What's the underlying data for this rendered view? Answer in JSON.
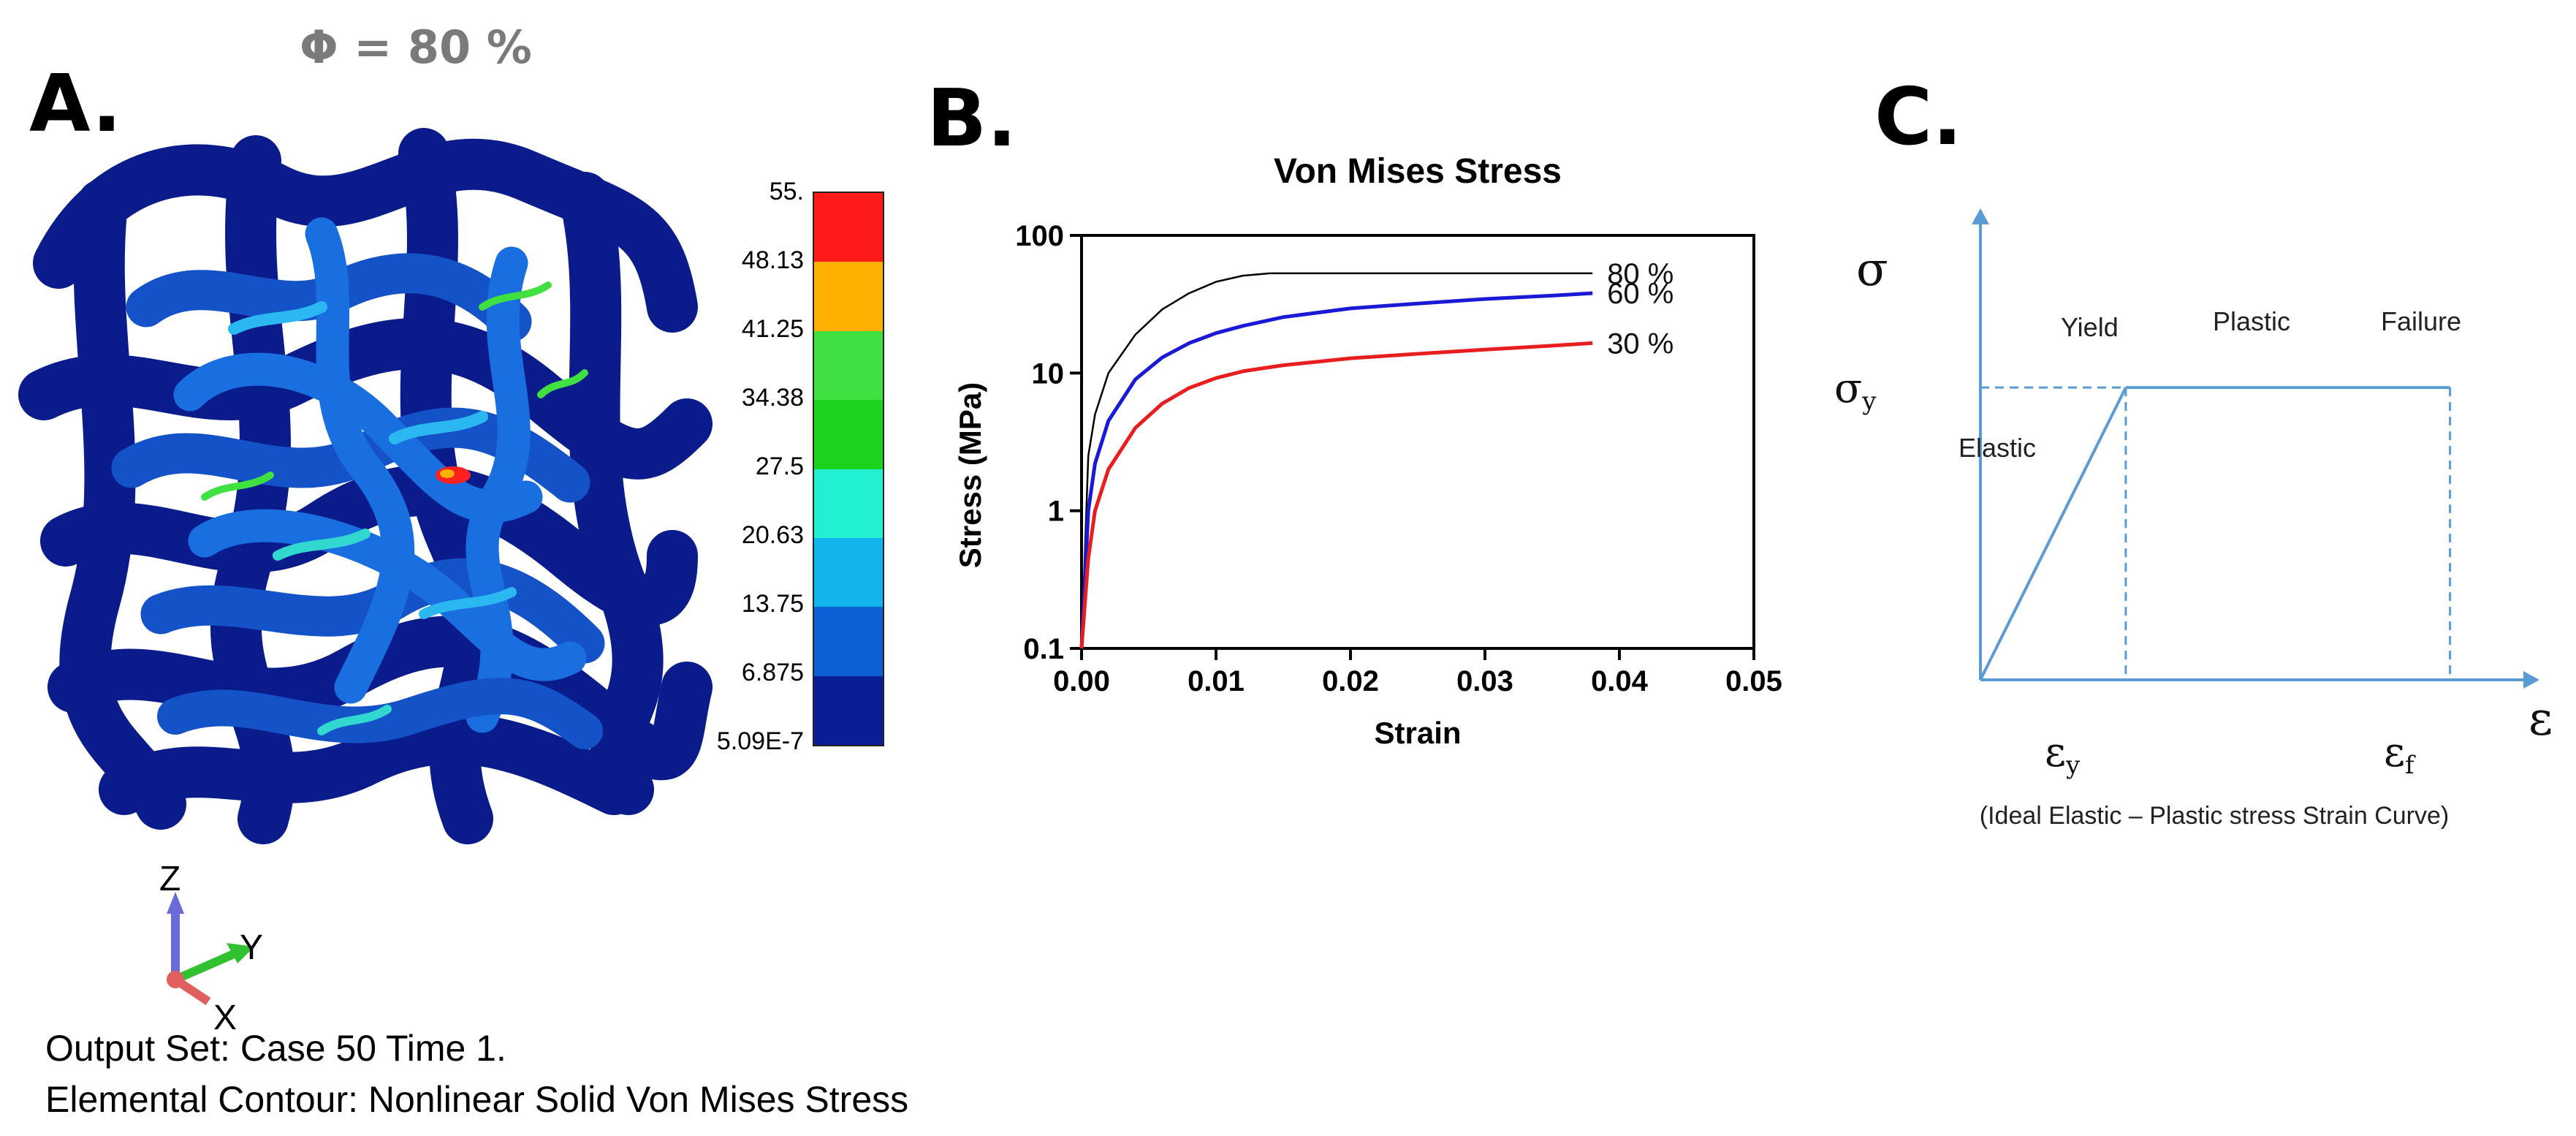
{
  "panel_a": {
    "label": "A.",
    "phi_title": "Φ = 80 %",
    "legend": {
      "values": [
        "55.",
        "48.13",
        "41.25",
        "34.38",
        "27.5",
        "20.63",
        "13.75",
        "6.875",
        "5.09E-7"
      ],
      "colors": [
        "#ff1a1a",
        "#ffb000",
        "#40e040",
        "#1cd21c",
        "#22f0d2",
        "#12b4ee",
        "#0d5fd6",
        "#0a1c96"
      ]
    },
    "axes_triad": {
      "z": "Z",
      "y": "Y",
      "x": "X"
    },
    "caption": {
      "line1": "Output Set: Case 50 Time 1.",
      "line2": "Elemental Contour: Nonlinear Solid Von Mises Stress"
    }
  },
  "panel_b": {
    "label": "B."
  },
  "panel_c": {
    "label": "C.",
    "y_axis_symbol": "σ",
    "x_axis_symbol": "ε",
    "sigma_y": {
      "main": "σ",
      "sub": "y"
    },
    "eps_y": {
      "main": "ε",
      "sub": "y"
    },
    "eps_f": {
      "main": "ε",
      "sub": "f"
    },
    "labels": {
      "elastic": "Elastic",
      "yield": "Yield",
      "plastic": "Plastic",
      "failure": "Failure"
    },
    "caption": "(Ideal Elastic – Plastic stress Strain Curve)",
    "line_color": "#5b9bd5",
    "model": {
      "yield_strain_frac": 0.26,
      "failure_strain_frac": 0.84,
      "yield_stress_frac": 0.62
    }
  },
  "chart_data": {
    "type": "line",
    "title": "Von Mises Stress",
    "xlabel": "Strain",
    "ylabel": "Stress (MPa)",
    "xlim": [
      0,
      0.05
    ],
    "ylim": [
      0.1,
      100
    ],
    "yscale": "log",
    "xticks": [
      "0.00",
      "0.01",
      "0.02",
      "0.03",
      "0.04",
      "0.05"
    ],
    "yticks": [
      "0.1",
      "1",
      "10",
      "100"
    ],
    "series": [
      {
        "name": "80 %",
        "label": "80 %",
        "color": "#000000",
        "x": [
          0,
          0.0005,
          0.001,
          0.002,
          0.004,
          0.006,
          0.008,
          0.01,
          0.012,
          0.014,
          0.016,
          0.02,
          0.025,
          0.03,
          0.035,
          0.038
        ],
        "y": [
          0.1,
          2.5,
          5,
          10,
          19,
          29,
          38,
          46,
          51,
          53,
          53,
          53,
          53,
          53,
          53,
          53
        ]
      },
      {
        "name": "60 %",
        "label": "60 %",
        "color": "#1a1ad6",
        "x": [
          0,
          0.0005,
          0.001,
          0.002,
          0.004,
          0.006,
          0.008,
          0.01,
          0.012,
          0.015,
          0.02,
          0.025,
          0.03,
          0.035,
          0.038
        ],
        "y": [
          0.1,
          1.0,
          2.2,
          4.5,
          9,
          13,
          16.5,
          19.5,
          22,
          25.5,
          29.5,
          32,
          34.5,
          36.5,
          38
        ]
      },
      {
        "name": "30 %",
        "label": "30 %",
        "color": "#e81e1e",
        "x": [
          0,
          0.0005,
          0.001,
          0.002,
          0.004,
          0.006,
          0.008,
          0.01,
          0.012,
          0.015,
          0.02,
          0.025,
          0.03,
          0.035,
          0.038
        ],
        "y": [
          0.1,
          0.45,
          1.0,
          2.0,
          4.0,
          6.0,
          7.8,
          9.2,
          10.3,
          11.4,
          12.8,
          13.8,
          14.8,
          15.8,
          16.5
        ]
      }
    ]
  }
}
